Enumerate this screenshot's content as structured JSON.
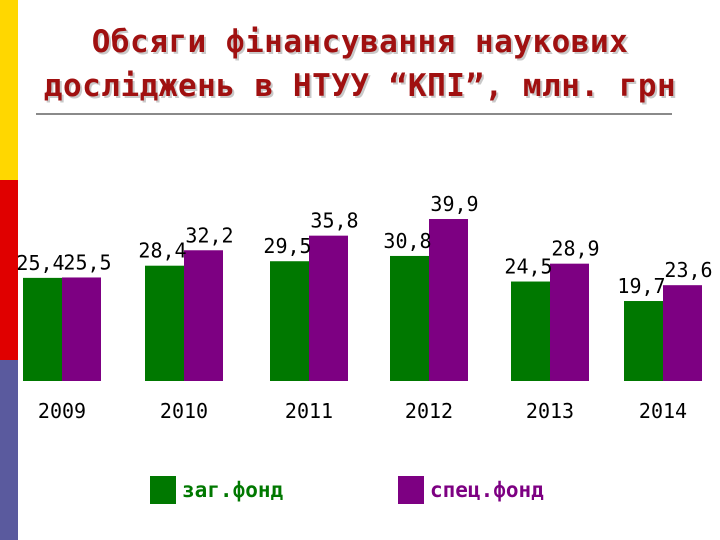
{
  "decor": {
    "stripes": [
      {
        "color": "#ffd700",
        "top": 0,
        "height": 180
      },
      {
        "color": "#e00000",
        "top": 180,
        "height": 180
      },
      {
        "color": "#5a5a9e",
        "top": 360,
        "height": 180
      }
    ]
  },
  "colors": {
    "title": "#a01010",
    "text": "#000000"
  },
  "chart_data": {
    "type": "bar",
    "title": "Обсяги фінансування наукових досліджень в НТУУ “КПІ”, млн. грн",
    "categories": [
      "2009",
      "2010",
      "2011",
      "2012",
      "2013",
      "2014"
    ],
    "series": [
      {
        "name": "заг.фонд",
        "color": "#007800",
        "values": [
          25.4,
          28.4,
          29.5,
          30.8,
          24.5,
          19.7
        ],
        "labels": [
          "25,4",
          "28,4",
          "29,5",
          "30,8",
          "24,5",
          "19,7"
        ]
      },
      {
        "name": "спец.фонд",
        "color": "#7d0082",
        "values": [
          25.5,
          32.2,
          35.8,
          39.9,
          28.9,
          23.6
        ],
        "labels": [
          "25,5",
          "32,2",
          "35,8",
          "39,9",
          "28,9",
          "23,6"
        ]
      }
    ],
    "legend_position": "bottom",
    "grid": false
  }
}
